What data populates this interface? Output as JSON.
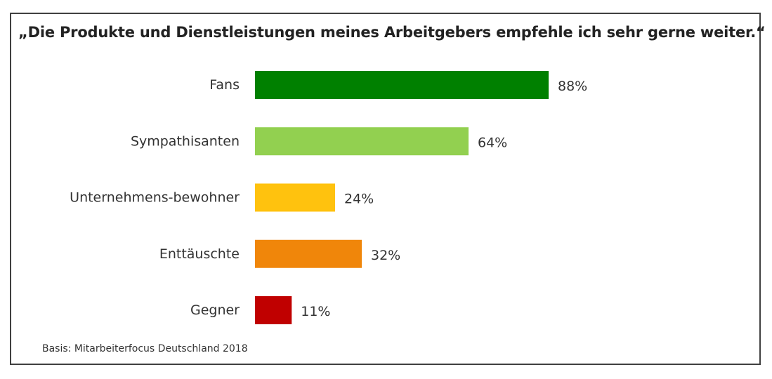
{
  "chart_data": {
    "type": "bar",
    "orientation": "horizontal",
    "title": "„Die Produkte und Dienstleistungen meines Arbeitgebers empfehle ich sehr gerne weiter.“",
    "categories": [
      "Fans",
      "Sympathisanten",
      "Unternehmens-bewohner",
      "Enttäuschte",
      "Gegner"
    ],
    "values": [
      88,
      64,
      24,
      32,
      11
    ],
    "value_labels": [
      "88%",
      "64%",
      "24%",
      "32%",
      "11%"
    ],
    "colors": [
      "#008000",
      "#92d050",
      "#ffc20e",
      "#f0860a",
      "#c00000"
    ],
    "xlim": [
      0,
      100
    ],
    "grid": false,
    "legend": "none"
  },
  "footnote": "Basis: Mitarbeiterfocus Deutschland 2018"
}
